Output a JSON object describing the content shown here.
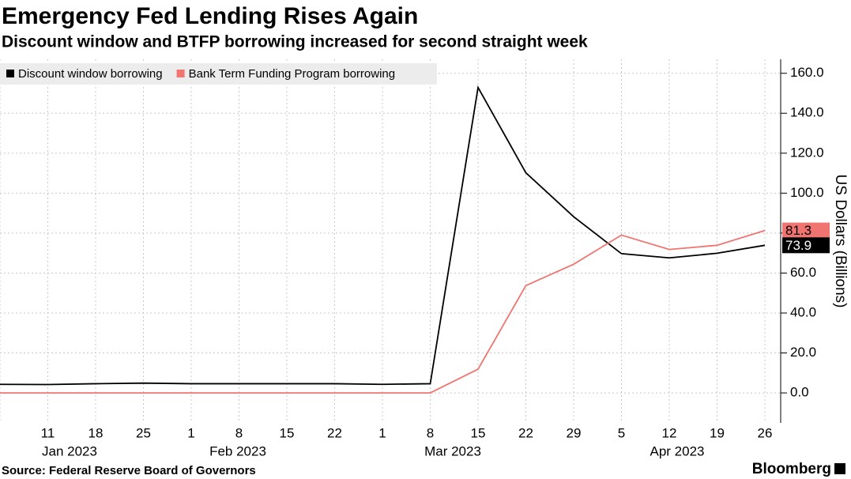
{
  "chart_data": {
    "type": "line",
    "title": "Emergency Fed Lending Rises Again",
    "subtitle": "Discount window and BTFP borrowing increased for second straight week",
    "y_label": "US Dollars (Billions)",
    "source": "Source: Federal Reserve Board of Governors",
    "brand": "Bloomberg",
    "categories": [
      null,
      "11",
      "18",
      "25",
      "1",
      "8",
      "15",
      "22",
      "1",
      "8",
      "15",
      "22",
      "29",
      "5",
      "12",
      "19",
      "26"
    ],
    "month_labels": [
      "Jan 2023",
      "Feb 2023",
      "Mar 2023",
      "Apr 2023"
    ],
    "series": [
      {
        "name": "Discount window borrowing",
        "color": "#000000",
        "values": [
          4.3,
          4.2,
          4.6,
          4.9,
          4.6,
          4.6,
          4.6,
          4.6,
          4.3,
          4.6,
          152.9,
          110.2,
          88.2,
          69.7,
          67.6,
          69.9,
          73.9
        ]
      },
      {
        "name": "Bank Term Funding Program borrowing",
        "color": "#f07470",
        "values": [
          0,
          0,
          0,
          0,
          0,
          0,
          0,
          0,
          0,
          0,
          11.9,
          53.7,
          64.4,
          79.0,
          71.8,
          73.9,
          81.3
        ]
      }
    ],
    "ylim": [
      -15,
      167
    ],
    "yticks": [
      {
        "value": 0,
        "label": "0.0"
      },
      {
        "value": 20,
        "label": "20.0"
      },
      {
        "value": 40,
        "label": "40.0"
      },
      {
        "value": 60,
        "label": "60.0"
      },
      {
        "value": 80,
        "label": "80.0"
      },
      {
        "value": 100,
        "label": "100.0"
      },
      {
        "value": 120,
        "label": "120.0"
      },
      {
        "value": 140,
        "label": "140.0"
      },
      {
        "value": 160,
        "label": "160.0"
      }
    ],
    "grid": true,
    "legend": "top-left"
  }
}
